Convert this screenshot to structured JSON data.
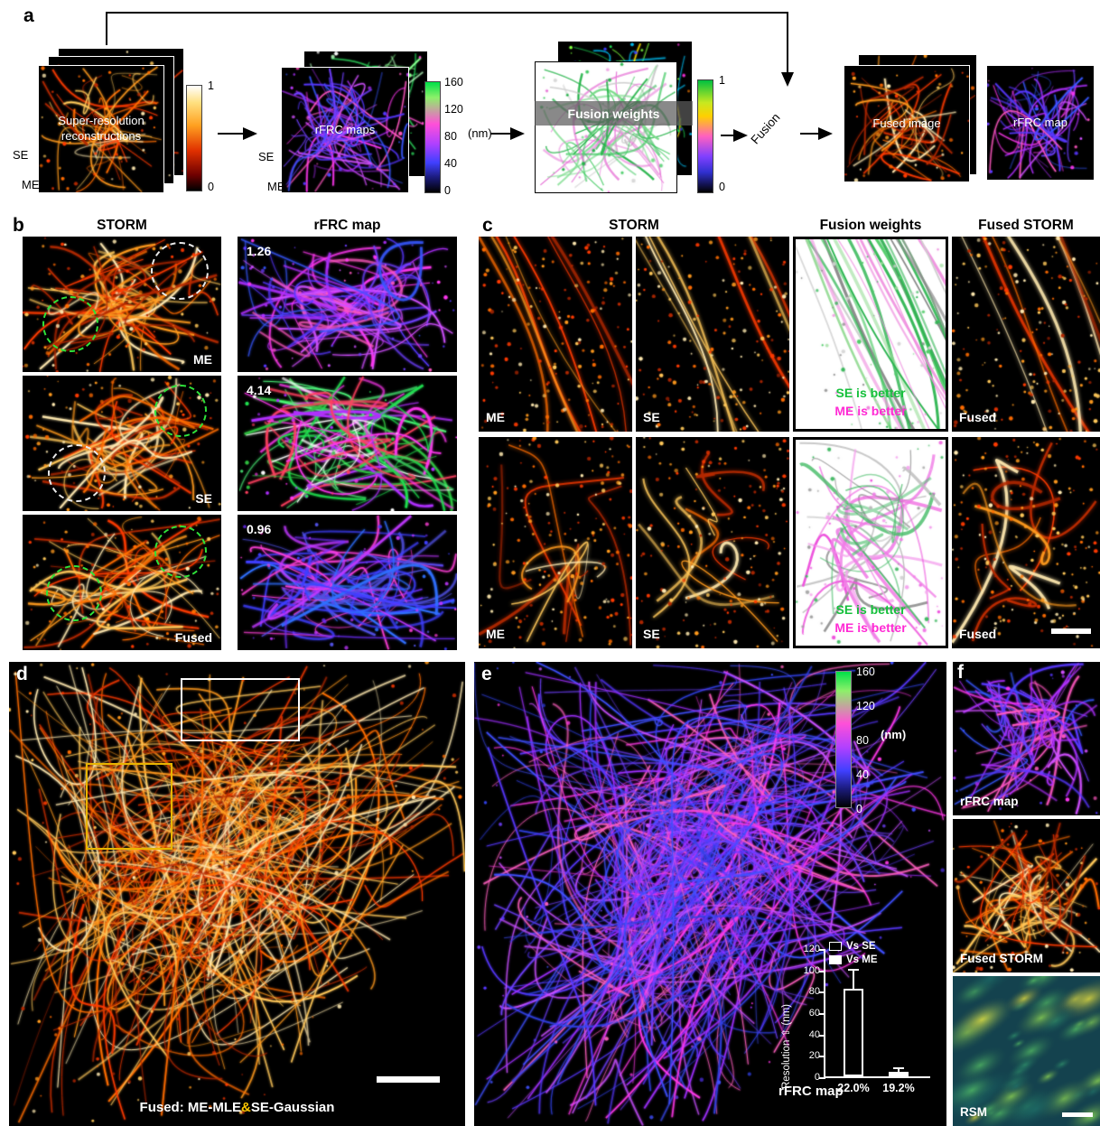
{
  "colors": {
    "se_better_green": "#16c03c",
    "me_better_magenta": "#ff2ad4",
    "caption_amp_yellow": "#ffc800",
    "roi_yellow": "#e8b400",
    "roi_white": "#ffffff"
  },
  "panel_a": {
    "label": "a",
    "recon_title": "Super-resolution reconstructions",
    "recon_se": "SE",
    "recon_me": "ME",
    "cb_hot_top": "1",
    "cb_hot_bottom": "0",
    "rfrc_title": "rFRC maps",
    "rfrc_se": "SE",
    "rfrc_me": "ME",
    "cb_rfrc": {
      "t1": "160",
      "t2": "120",
      "t3": "80",
      "t4": "40",
      "t5": "0",
      "unit": "(nm)"
    },
    "weights_title": "Fusion weights",
    "cb_w_top": "1",
    "cb_w_bottom": "0",
    "fusion": "Fusion",
    "fused_title": "Fused image",
    "small_rfrc_title": "rFRC map"
  },
  "panel_b": {
    "label": "b",
    "hdr_storm": "STORM",
    "hdr_rfrc": "rFRC map",
    "rows": [
      {
        "label": "ME",
        "value": "1.26"
      },
      {
        "label": "SE",
        "value": "4.14"
      },
      {
        "label": "Fused",
        "value": "0.96"
      }
    ]
  },
  "panel_c": {
    "label": "c",
    "hdr_storm": "STORM",
    "hdr_weights": "Fusion weights",
    "hdr_fused": "Fused STORM",
    "se_better": "SE is better",
    "me_better": "ME is better",
    "rows": [
      {
        "me": "ME",
        "se": "SE",
        "fused": "Fused"
      },
      {
        "me": "ME",
        "se": "SE",
        "fused": "Fused"
      }
    ]
  },
  "panel_d": {
    "label": "d",
    "caption_prefix": "Fused: ME-MLE",
    "caption_amp": "&",
    "caption_suffix": "SE-Gaussian"
  },
  "panel_e": {
    "label": "e",
    "cb": {
      "t1": "160",
      "t2": "120",
      "t3": "80",
      "t4": "40",
      "t5": "0",
      "unit": "(nm)"
    },
    "map_label": "rFRC map"
  },
  "panel_f": {
    "label": "f",
    "img1_label": "rFRC map",
    "img2_label": "Fused STORM",
    "img3_label": "RSM"
  },
  "chart_data": {
    "type": "bar",
    "ylabel": "Resolution ⇧ (nm)",
    "ylim": [
      0,
      120
    ],
    "yticks": [
      0,
      20,
      40,
      60,
      80,
      100,
      120
    ],
    "categories": [
      "22.0%",
      "19.2%"
    ],
    "series": [
      {
        "name": "Vs SE",
        "value": 82,
        "error": 18,
        "style": "open"
      },
      {
        "name": "Vs ME",
        "value": 4,
        "error": 4,
        "style": "filled"
      }
    ],
    "legend_position": "upper right",
    "grid": false
  }
}
